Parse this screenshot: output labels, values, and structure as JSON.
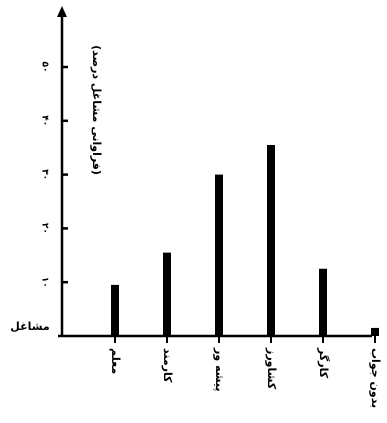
{
  "chart_data": {
    "type": "bar",
    "title": "",
    "ylabel": "(فراوانی مشاغل درصد)",
    "xlabel": "مشاغل",
    "categories": [
      "معلم",
      "کارمند",
      "پیشه ور",
      "کشاورز",
      "کارگر",
      "بدون جواب"
    ],
    "values": [
      9.5,
      15.5,
      30,
      35.5,
      12.5,
      1.5
    ],
    "ylim": [
      0,
      50
    ],
    "yticks": [
      10,
      20,
      30,
      40,
      50
    ],
    "ytick_labels": [
      "۱۰",
      "۲۰",
      "۳۰",
      "۴۰",
      "۵۰"
    ],
    "grid": false,
    "legend": "none",
    "bar_color": "#000000"
  }
}
